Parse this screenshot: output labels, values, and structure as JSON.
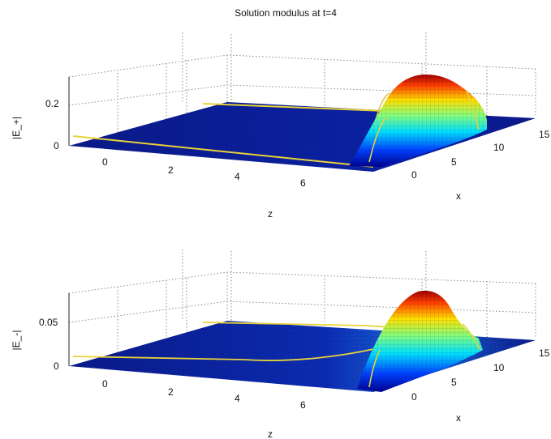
{
  "chart_data": {
    "title": "Solution modulus at t=4",
    "charts": [
      {
        "type": "surface",
        "id": "top",
        "zlabel": "|E_+|",
        "xlabel": "z",
        "ylabel": "x",
        "z_axis_ticks": [
          "0",
          "0.2"
        ],
        "x_axis_ticks": [
          "0",
          "2",
          "4",
          "6"
        ],
        "y_axis_ticks": [
          "0",
          "5",
          "10",
          "15"
        ],
        "xlim": [
          -1,
          8
        ],
        "ylim": [
          0,
          15
        ],
        "zlim": [
          0,
          0.3
        ],
        "grid": true,
        "colormap": "jet",
        "peak": {
          "z": 7.3,
          "x": 11,
          "value": 0.28
        }
      },
      {
        "type": "surface",
        "id": "bottom",
        "zlabel": "|E_-|",
        "xlabel": "z",
        "ylabel": "x",
        "z_axis_ticks": [
          "0",
          "0.05"
        ],
        "x_axis_ticks": [
          "0",
          "2",
          "4",
          "6"
        ],
        "y_axis_ticks": [
          "0",
          "5",
          "10",
          "15"
        ],
        "xlim": [
          -1,
          8
        ],
        "ylim": [
          0,
          15
        ],
        "zlim": [
          0,
          0.08
        ],
        "grid": true,
        "colormap": "jet",
        "peak": {
          "z": 7.3,
          "x": 11,
          "value": 0.075
        }
      }
    ]
  }
}
